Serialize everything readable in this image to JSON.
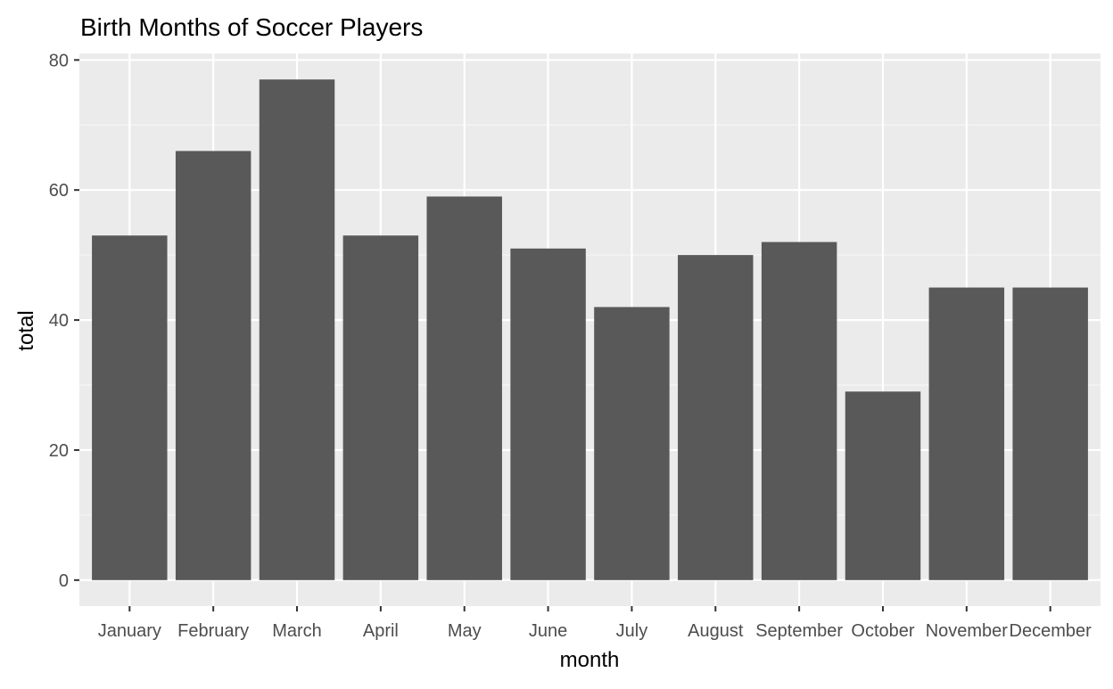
{
  "chart_data": {
    "type": "bar",
    "title": "Birth Months of Soccer Players",
    "xlabel": "month",
    "ylabel": "total",
    "categories": [
      "January",
      "February",
      "March",
      "April",
      "May",
      "June",
      "July",
      "August",
      "September",
      "October",
      "November",
      "December"
    ],
    "values": [
      53,
      66,
      77,
      53,
      59,
      51,
      42,
      50,
      52,
      29,
      45,
      45
    ],
    "ylim": [
      -4,
      81
    ],
    "yticks": [
      0,
      20,
      40,
      60,
      80
    ],
    "grid": true,
    "legend": "none",
    "colors": {
      "bar": "#595959",
      "panel": "#ebebeb",
      "grid_major": "#ffffff",
      "grid_minor": "#f5f5f5",
      "tick_text": "#4d4d4d",
      "title_text": "#000000"
    }
  }
}
